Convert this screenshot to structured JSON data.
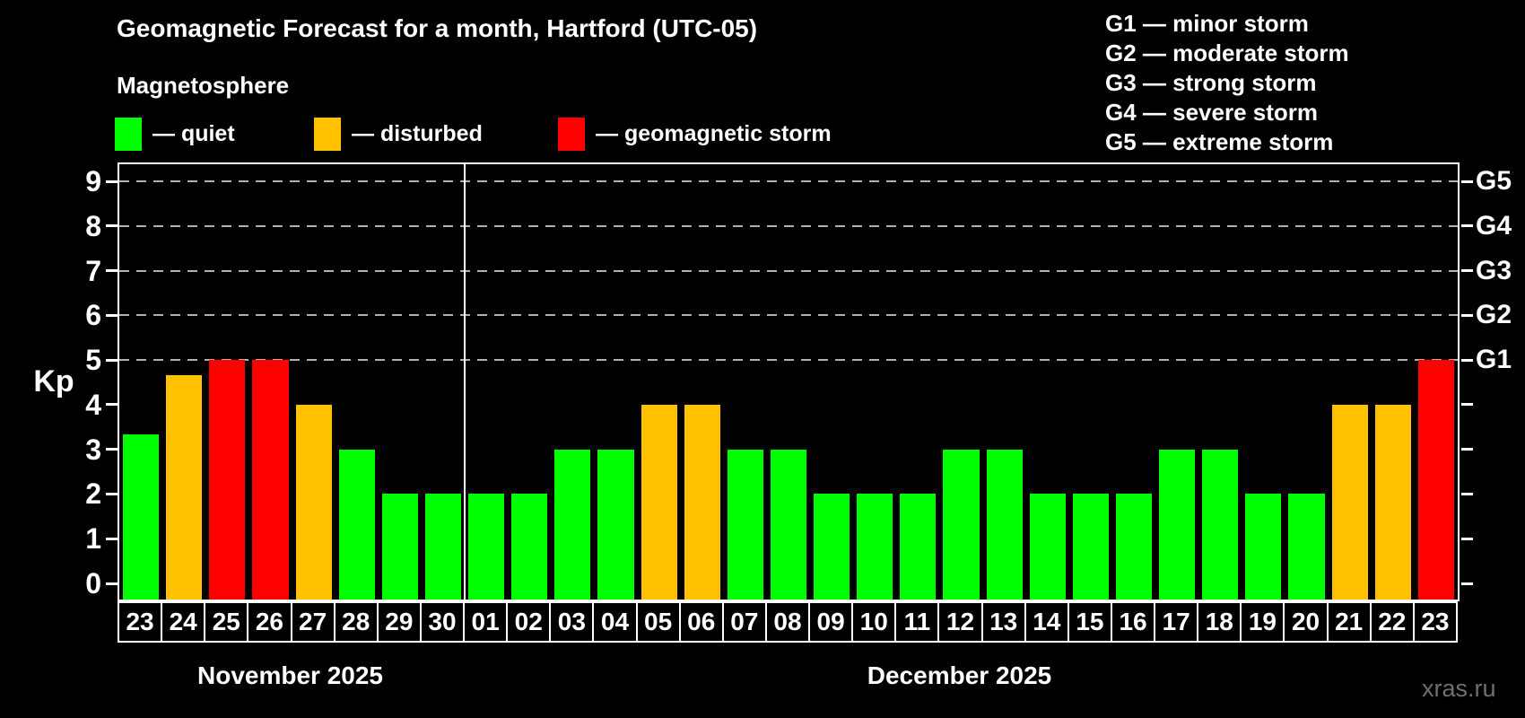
{
  "header": {
    "title": "Geomagnetic Forecast for a month, Hartford (UTC-05)",
    "subtitle": "Magnetosphere"
  },
  "legend": {
    "items": [
      {
        "label": "— quiet",
        "level": "quiet",
        "color": "#00ff00"
      },
      {
        "label": "— disturbed",
        "level": "disturbed",
        "color": "#ffc100"
      },
      {
        "label": "— geomagnetic storm",
        "level": "storm",
        "color": "#ff0000"
      }
    ]
  },
  "g_scale_legend": {
    "items": [
      "G1 — minor storm",
      "G2 — moderate storm",
      "G3 — strong storm",
      "G4 — severe storm",
      "G5 — extreme storm"
    ]
  },
  "watermark": "xras.ru",
  "chart_data": {
    "type": "bar",
    "title": "Geomagnetic Forecast for a month, Hartford (UTC-05)",
    "ylabel": "Kp",
    "ylim": [
      -0.36,
      9.38
    ],
    "yticks": [
      0,
      1,
      2,
      3,
      4,
      5,
      6,
      7,
      8,
      9
    ],
    "gridlines_at": [
      5,
      6,
      7,
      8,
      9
    ],
    "grid": "dashed horizontal at storm levels only",
    "legend_position": "top",
    "right_axis_labels": [
      {
        "kp": 5,
        "label": "G1"
      },
      {
        "kp": 6,
        "label": "G2"
      },
      {
        "kp": 7,
        "label": "G3"
      },
      {
        "kp": 8,
        "label": "G4"
      },
      {
        "kp": 9,
        "label": "G5"
      }
    ],
    "colors": {
      "quiet": "#00ff00",
      "disturbed": "#ffc100",
      "storm": "#ff0000"
    },
    "months": [
      {
        "label": "November 2025",
        "days": 8
      },
      {
        "label": "December 2025",
        "days": 23
      }
    ],
    "bars": [
      {
        "day": "23",
        "month": "November 2025",
        "value": 3.33,
        "level": "quiet"
      },
      {
        "day": "24",
        "month": "November 2025",
        "value": 4.67,
        "level": "disturbed"
      },
      {
        "day": "25",
        "month": "November 2025",
        "value": 5,
        "level": "storm"
      },
      {
        "day": "26",
        "month": "November 2025",
        "value": 5,
        "level": "storm"
      },
      {
        "day": "27",
        "month": "November 2025",
        "value": 4,
        "level": "disturbed"
      },
      {
        "day": "28",
        "month": "November 2025",
        "value": 3,
        "level": "quiet"
      },
      {
        "day": "29",
        "month": "November 2025",
        "value": 2,
        "level": "quiet"
      },
      {
        "day": "30",
        "month": "November 2025",
        "value": 2,
        "level": "quiet"
      },
      {
        "day": "01",
        "month": "December 2025",
        "value": 2,
        "level": "quiet"
      },
      {
        "day": "02",
        "month": "December 2025",
        "value": 2,
        "level": "quiet"
      },
      {
        "day": "03",
        "month": "December 2025",
        "value": 3,
        "level": "quiet"
      },
      {
        "day": "04",
        "month": "December 2025",
        "value": 3,
        "level": "quiet"
      },
      {
        "day": "05",
        "month": "December 2025",
        "value": 4,
        "level": "disturbed"
      },
      {
        "day": "06",
        "month": "December 2025",
        "value": 4,
        "level": "disturbed"
      },
      {
        "day": "07",
        "month": "December 2025",
        "value": 3,
        "level": "quiet"
      },
      {
        "day": "08",
        "month": "December 2025",
        "value": 3,
        "level": "quiet"
      },
      {
        "day": "09",
        "month": "December 2025",
        "value": 2,
        "level": "quiet"
      },
      {
        "day": "10",
        "month": "December 2025",
        "value": 2,
        "level": "quiet"
      },
      {
        "day": "11",
        "month": "December 2025",
        "value": 2,
        "level": "quiet"
      },
      {
        "day": "12",
        "month": "December 2025",
        "value": 3,
        "level": "quiet"
      },
      {
        "day": "13",
        "month": "December 2025",
        "value": 3,
        "level": "quiet"
      },
      {
        "day": "14",
        "month": "December 2025",
        "value": 2,
        "level": "quiet"
      },
      {
        "day": "15",
        "month": "December 2025",
        "value": 2,
        "level": "quiet"
      },
      {
        "day": "16",
        "month": "December 2025",
        "value": 2,
        "level": "quiet"
      },
      {
        "day": "17",
        "month": "December 2025",
        "value": 3,
        "level": "quiet"
      },
      {
        "day": "18",
        "month": "December 2025",
        "value": 3,
        "level": "quiet"
      },
      {
        "day": "19",
        "month": "December 2025",
        "value": 2,
        "level": "quiet"
      },
      {
        "day": "20",
        "month": "December 2025",
        "value": 2,
        "level": "quiet"
      },
      {
        "day": "21",
        "month": "December 2025",
        "value": 4,
        "level": "disturbed"
      },
      {
        "day": "22",
        "month": "December 2025",
        "value": 4,
        "level": "disturbed"
      },
      {
        "day": "23",
        "month": "December 2025",
        "value": 5,
        "level": "storm"
      }
    ]
  }
}
